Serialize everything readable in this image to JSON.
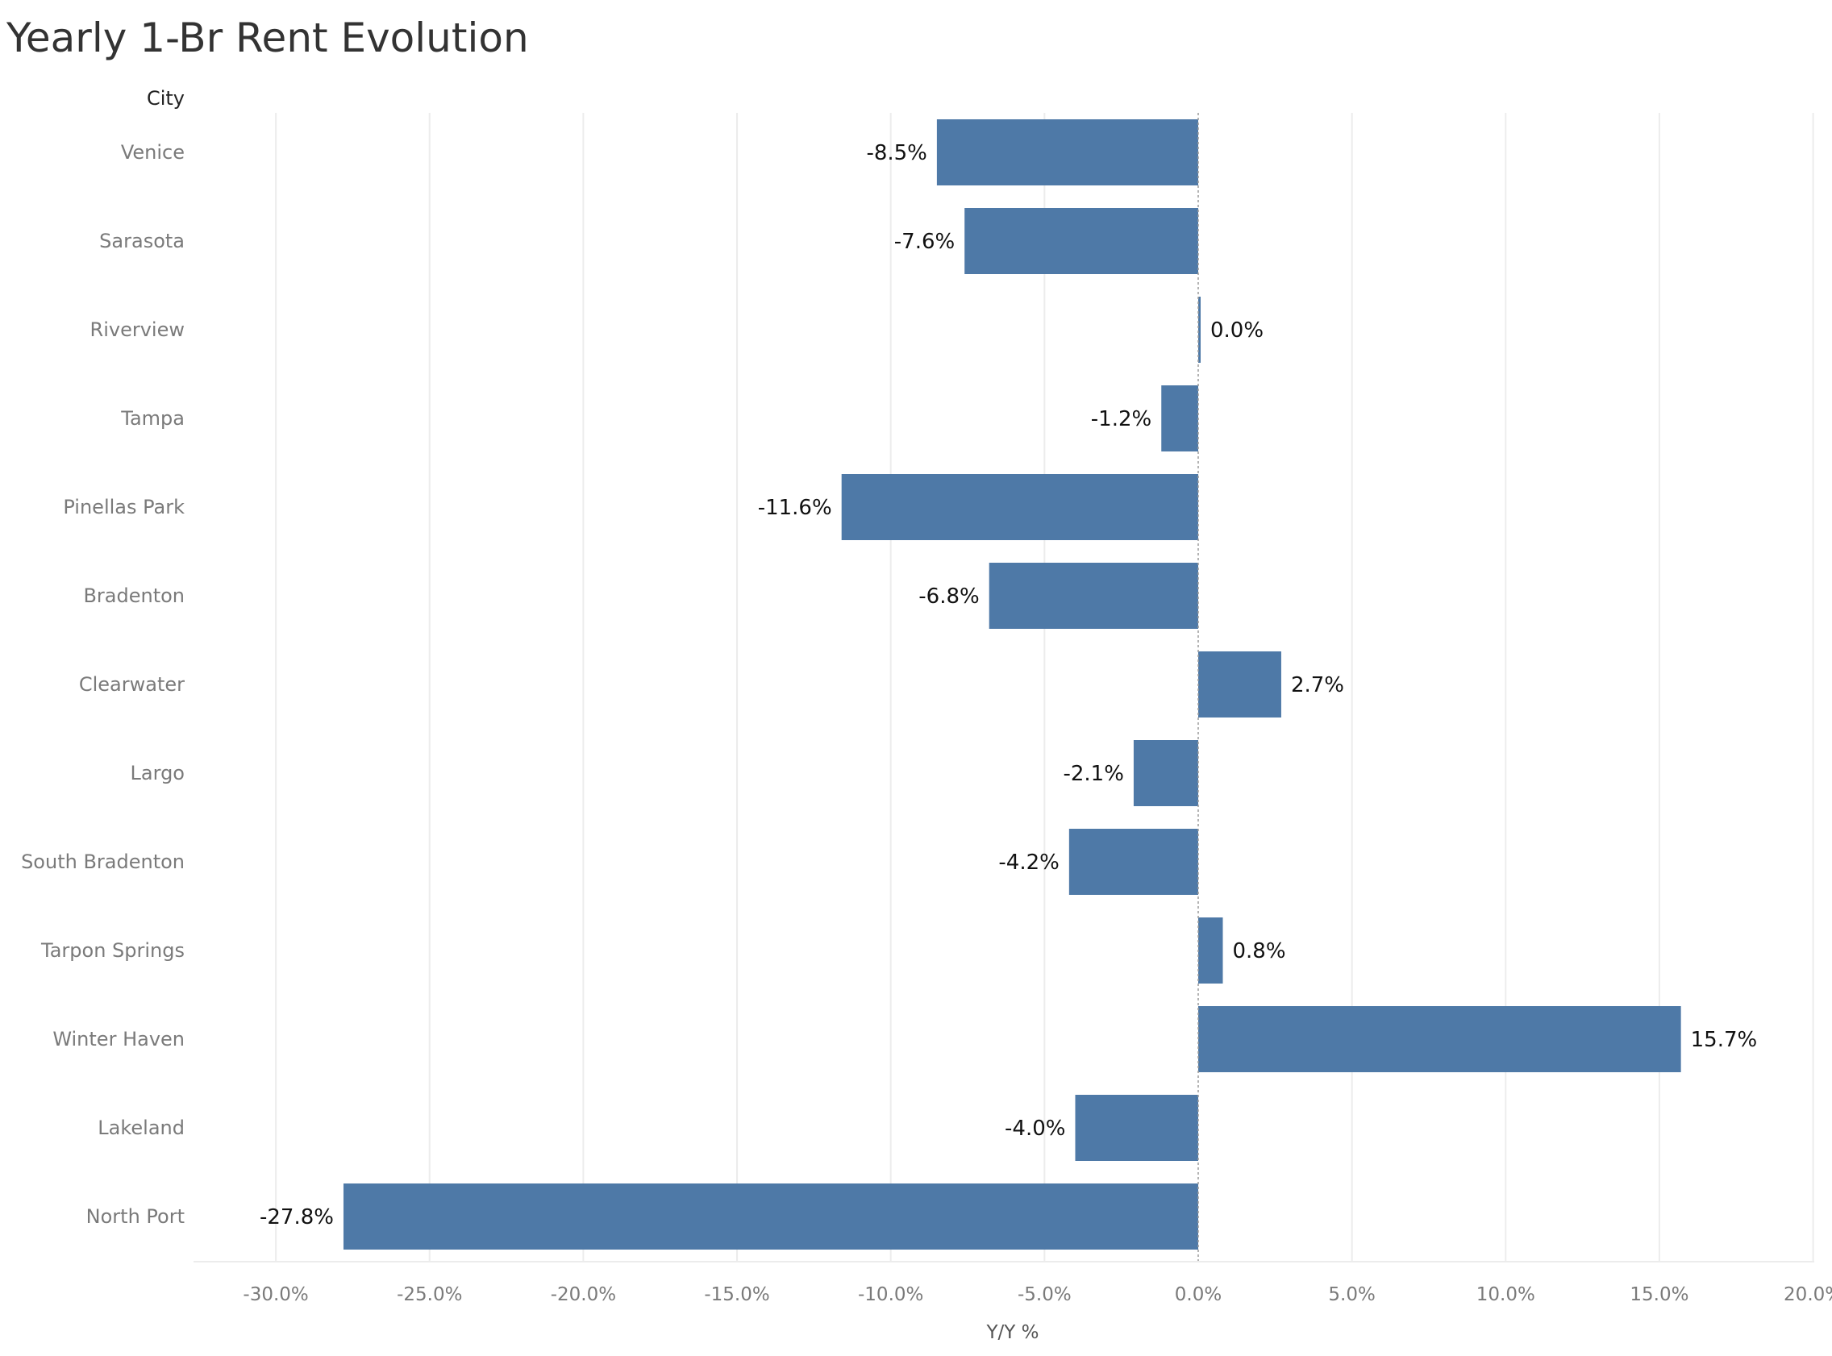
{
  "chart_data": {
    "type": "bar",
    "orientation": "horizontal",
    "title": "Yearly 1-Br Rent Evolution",
    "row_header": "City",
    "xlabel": "Y/Y %",
    "categories": [
      "Venice",
      "Sarasota",
      "Riverview",
      "Tampa",
      "Pinellas Park",
      "Bradenton",
      "Clearwater",
      "Largo",
      "South Bradenton",
      "Tarpon Springs",
      "Winter Haven",
      "Lakeland",
      "North Port"
    ],
    "values": [
      -8.5,
      -7.6,
      0.0,
      -1.2,
      -11.6,
      -6.8,
      2.7,
      -2.1,
      -4.2,
      0.8,
      15.7,
      -4.0,
      -27.8
    ],
    "data_labels": [
      "-8.5%",
      "-7.6%",
      "0.0%",
      "-1.2%",
      "-11.6%",
      "-6.8%",
      "2.7%",
      "-2.1%",
      "-4.2%",
      "0.8%",
      "15.7%",
      "-4.0%",
      "-27.8%"
    ],
    "x_ticks": [
      -30,
      -25,
      -20,
      -15,
      -10,
      -5,
      0,
      5,
      10,
      15,
      20
    ],
    "x_tick_labels": [
      "-30.0%",
      "-25.0%",
      "-20.0%",
      "-15.0%",
      "-10.0%",
      "-5.0%",
      "0.0%",
      "5.0%",
      "10.0%",
      "15.0%",
      "20.0%"
    ],
    "xlim": [
      -32.7,
      20
    ],
    "grid": "vertical",
    "bar_color": "#4e79a7",
    "gridline_color": "#ececec",
    "zero_line_color": "#9a9a9a"
  }
}
